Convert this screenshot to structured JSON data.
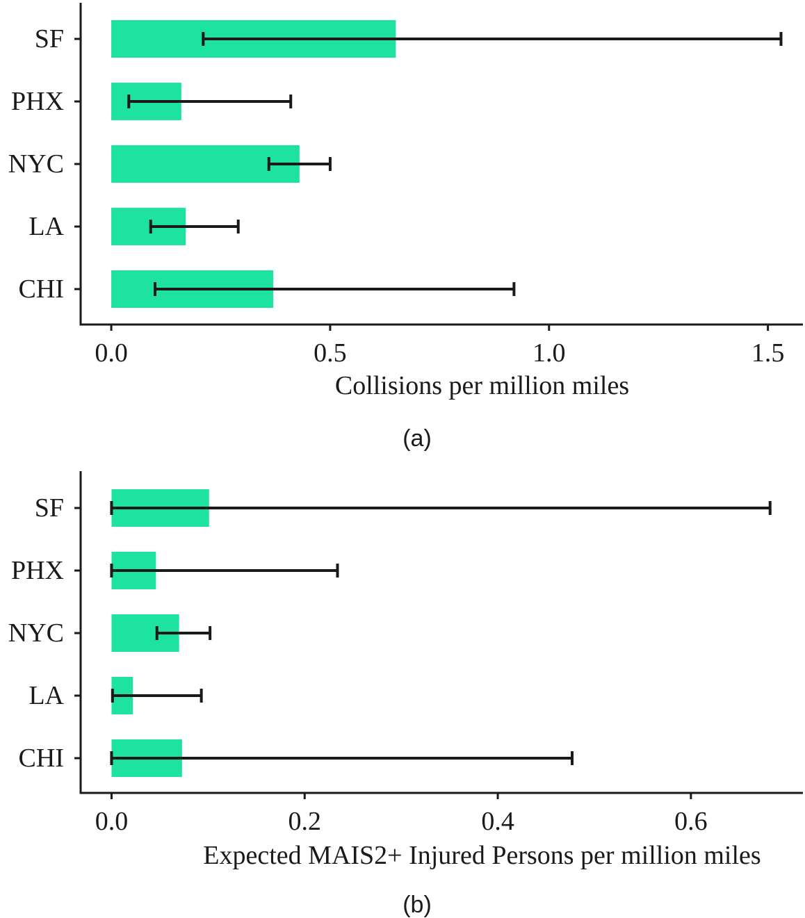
{
  "colors": {
    "bar": "#1ee3a0",
    "axis": "#1a1a1a",
    "errorbar": "#1a1a1a"
  },
  "chart_data": [
    {
      "type": "bar",
      "orientation": "horizontal",
      "caption": "(a)",
      "xlabel": "Collisions per million miles",
      "ylabel": "",
      "categories": [
        "SF",
        "PHX",
        "NYC",
        "LA",
        "CHI"
      ],
      "values": [
        0.65,
        0.16,
        0.43,
        0.17,
        0.37
      ],
      "error_low": [
        0.21,
        0.04,
        0.36,
        0.09,
        0.1
      ],
      "error_high": [
        1.53,
        0.41,
        0.5,
        0.29,
        0.92
      ],
      "xlim": [
        -0.07,
        1.58
      ],
      "xticks": [
        0.0,
        0.5,
        1.0,
        1.5
      ],
      "xtick_labels": [
        "0.0",
        "0.5",
        "1.0",
        "1.5"
      ],
      "grid": false,
      "legend": "none"
    },
    {
      "type": "bar",
      "orientation": "horizontal",
      "caption": "(b)",
      "xlabel": "Expected MAIS2+ Injured Persons per million miles",
      "ylabel": "",
      "categories": [
        "SF",
        "PHX",
        "NYC",
        "LA",
        "CHI"
      ],
      "values": [
        0.101,
        0.046,
        0.07,
        0.022,
        0.073
      ],
      "error_low": [
        0.0,
        0.0,
        0.047,
        0.001,
        0.0
      ],
      "error_high": [
        0.682,
        0.234,
        0.102,
        0.093,
        0.477
      ],
      "xlim": [
        -0.032,
        0.716
      ],
      "xticks": [
        0.0,
        0.2,
        0.4,
        0.6
      ],
      "xtick_labels": [
        "0.0",
        "0.2",
        "0.4",
        "0.6"
      ],
      "grid": false,
      "legend": "none"
    }
  ]
}
